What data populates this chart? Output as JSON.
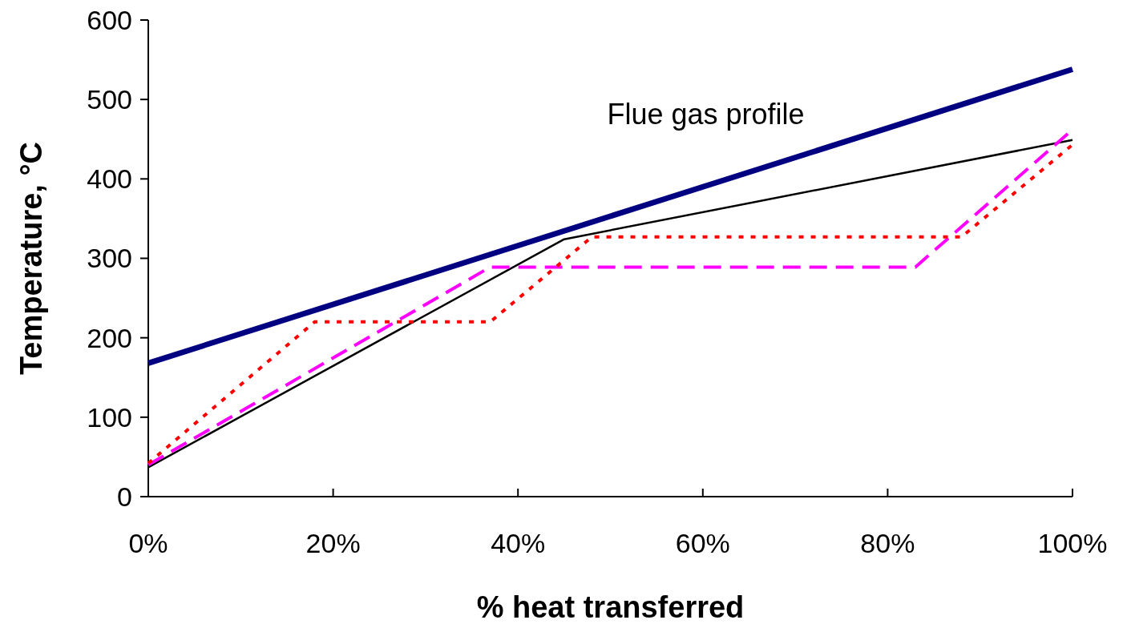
{
  "chart_data": {
    "type": "line",
    "xlabel": "% heat transferred",
    "ylabel": "Temperature, °C",
    "xlim": [
      0,
      100
    ],
    "ylim": [
      0,
      600
    ],
    "xticks": [
      {
        "value": 0,
        "label": "0%"
      },
      {
        "value": 20,
        "label": "20%"
      },
      {
        "value": 40,
        "label": "40%"
      },
      {
        "value": 60,
        "label": "60%"
      },
      {
        "value": 80,
        "label": "80%"
      },
      {
        "value": 100,
        "label": "100%"
      }
    ],
    "yticks": [
      0,
      100,
      200,
      300,
      400,
      500,
      600
    ],
    "grid": false,
    "marker": "none",
    "series": [
      {
        "name": "Flue gas profile",
        "color": "#000080",
        "line_style": "solid",
        "x": [
          0,
          100
        ],
        "values": [
          168,
          538
        ]
      },
      {
        "color": "#000000",
        "line_style": "solid",
        "x": [
          0,
          45,
          100
        ],
        "values": [
          37,
          324,
          449
        ]
      },
      {
        "color": "#ff00ff",
        "line_style": "dashed",
        "x": [
          0,
          37,
          83,
          100
        ],
        "values": [
          40,
          289,
          289,
          462
        ]
      },
      {
        "color": "#ff0000",
        "line_style": "dotted",
        "x": [
          0,
          18,
          37,
          48,
          88,
          100
        ],
        "values": [
          42,
          220,
          220,
          327,
          327,
          443
        ]
      }
    ]
  }
}
